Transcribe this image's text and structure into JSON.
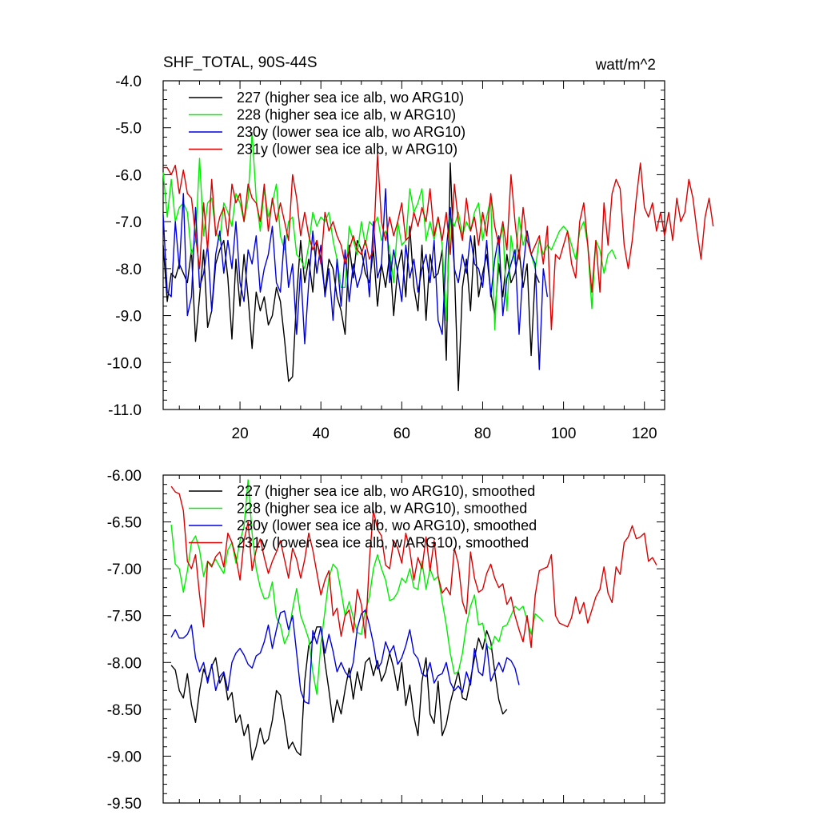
{
  "chart_data": [
    {
      "type": "line",
      "title": "SHF_TOTAL, 90S-44S",
      "units": "watt/m^2",
      "xlabel": "",
      "ylabel": "",
      "xlim": [
        1,
        125
      ],
      "ylim": [
        -11.0,
        -4.0
      ],
      "xticks": [
        20,
        40,
        60,
        80,
        100,
        120
      ],
      "xtick_labels": [
        "20",
        "40",
        "60",
        "80",
        "100",
        "120"
      ],
      "yticks": [
        -11.0,
        -10.0,
        -9.0,
        -8.0,
        -7.0,
        -6.0,
        -5.0,
        -4.0
      ],
      "ytick_labels": [
        "-11.0",
        "-10.0",
        "-9.0",
        "-8.0",
        "-7.0",
        "-6.0",
        "-5.0",
        "-4.0"
      ],
      "legend_position": "top-left",
      "grid": false,
      "series": [
        {
          "name": "227 (higher sea ice alb, wo ARG10)",
          "color": "#000000",
          "x_start": 1,
          "values": [
            -7.5,
            -8.7,
            -8.1,
            -8.2,
            -7.9,
            -8.1,
            -8.3,
            -7.6,
            -9.55,
            -8.6,
            -7.6,
            -9.25,
            -8.9,
            -7.9,
            -7.6,
            -7.4,
            -8.2,
            -9.5,
            -7.8,
            -8.8,
            -7.7,
            -8.6,
            -9.7,
            -8.5,
            -8.9,
            -8.6,
            -9.2,
            -9.0,
            -8.4,
            -8.7,
            -9.5,
            -10.4,
            -10.3,
            -8.6,
            -7.4,
            -8.3,
            -7.8,
            -8.5,
            -7.4,
            -7.8,
            -8.5,
            -7.8,
            -8.0,
            -8.6,
            -8.9,
            -9.4,
            -7.5,
            -8.2,
            -7.4,
            -7.6,
            -8.1,
            -8.3,
            -7.6,
            -8.8,
            -7.9,
            -8.4,
            -7.7,
            -9.0,
            -8.0,
            -7.6,
            -8.6,
            -7.1,
            -8.4,
            -8.9,
            -7.5,
            -9.1,
            -7.7,
            -8.2,
            -8.1,
            -7.6,
            -9.95,
            -5.75,
            -8.0,
            -10.6,
            -8.4,
            -7.8,
            -8.9,
            -7.3,
            -8.6,
            -8.1,
            -7.7,
            -8.5,
            -9.0,
            -7.9,
            -8.6,
            -7.7,
            -8.3,
            -8.1,
            -7.6,
            -8.4,
            -7.9,
            -9.85,
            -8.1,
            -8.3
          ]
        },
        {
          "name": "228 (higher sea ice alb, w ARG10)",
          "color": "#00ee00",
          "x_start": 1,
          "values": [
            -5.95,
            -6.9,
            -6.1,
            -7.0,
            -6.7,
            -6.6,
            -6.8,
            -7.7,
            -7.4,
            -5.65,
            -7.3,
            -6.6,
            -6.5,
            -7.2,
            -7.4,
            -6.6,
            -6.8,
            -7.1,
            -6.4,
            -6.6,
            -7.0,
            -6.5,
            -5.1,
            -6.5,
            -7.2,
            -6.3,
            -6.9,
            -6.6,
            -6.2,
            -7.3,
            -7.6,
            -7.0,
            -6.9,
            -7.7,
            -7.8,
            -8.0,
            -7.5,
            -6.8,
            -7.1,
            -6.9,
            -7.0,
            -6.8,
            -7.4,
            -7.8,
            -8.4,
            -8.4,
            -7.1,
            -7.4,
            -7.7,
            -7.0,
            -7.5,
            -7.0,
            -7.1,
            -6.9,
            -7.4,
            -7.2,
            -7.6,
            -8.3,
            -7.0,
            -7.5,
            -7.4,
            -6.3,
            -6.8,
            -6.6,
            -6.3,
            -7.4,
            -7.0,
            -7.4,
            -6.9,
            -7.5,
            -9.1,
            -6.9,
            -7.1,
            -6.8,
            -7.3,
            -7.0,
            -7.2,
            -6.8,
            -6.6,
            -7.4,
            -6.9,
            -6.5,
            -9.3,
            -7.5,
            -7.1,
            -8.9,
            -7.3,
            -7.9,
            -6.9,
            -7.5,
            -7.2,
            -7.7,
            -8.0,
            -7.4,
            -7.7,
            -7.5,
            -7.6,
            -7.4,
            -7.2,
            -7.1,
            -7.2,
            -7.5,
            -7.8,
            -7.2,
            -7.0,
            -7.5,
            -8.85,
            -7.4,
            -7.6,
            -8.1,
            -7.7,
            -7.6,
            -7.8
          ]
        },
        {
          "name": "230y (lower sea ice alb, wo ARG10)",
          "color": "#0000dd",
          "x_start": 1,
          "values": [
            -6.85,
            -8.5,
            -8.6,
            -7.0,
            -8.0,
            -6.4,
            -9.0,
            -8.6,
            -6.7,
            -8.4,
            -8.1,
            -7.5,
            -8.9,
            -7.7,
            -7.2,
            -8.1,
            -7.4,
            -8.0,
            -7.0,
            -8.3,
            -8.7,
            -7.6,
            -7.9,
            -7.3,
            -8.5,
            -8.0,
            -7.7,
            -7.1,
            -8.3,
            -8.5,
            -7.3,
            -8.4,
            -7.9,
            -9.4,
            -8.0,
            -9.6,
            -8.3,
            -7.2,
            -8.1,
            -7.5,
            -8.6,
            -8.0,
            -9.1,
            -7.8,
            -8.8,
            -7.6,
            -8.7,
            -7.9,
            -8.4,
            -8.1,
            -7.6,
            -8.6,
            -7.0,
            -8.2,
            -7.9,
            -6.3,
            -8.3,
            -7.6,
            -8.1,
            -8.7,
            -7.5,
            -8.2,
            -7.8,
            -8.5,
            -8.0,
            -7.7,
            -8.3,
            -7.4,
            -9.1,
            -9.4,
            -7.6,
            -6.7,
            -8.0,
            -8.3,
            -7.7,
            -8.1,
            -7.3,
            -7.9,
            -8.0,
            -8.4,
            -7.4,
            -8.6,
            -7.8,
            -7.3,
            -9.0,
            -8.2,
            -7.9,
            -7.6,
            -9.4,
            -8.0,
            -7.2,
            -7.7,
            -7.9,
            -10.15,
            -8.0,
            -8.6
          ]
        },
        {
          "name": "231y (lower sea ice alb, w ARG10)",
          "color": "#dd0000",
          "x_start": 1,
          "values": [
            -5.85,
            -5.85,
            -6.0,
            -5.8,
            -6.4,
            -5.9,
            -6.4,
            -6.5,
            -7.3,
            -8.0,
            -6.6,
            -7.6,
            -6.1,
            -7.3,
            -6.9,
            -6.7,
            -7.3,
            -6.2,
            -6.6,
            -6.4,
            -7.0,
            -6.2,
            -6.5,
            -6.6,
            -7.0,
            -6.2,
            -7.2,
            -6.5,
            -7.0,
            -6.6,
            -7.0,
            -7.4,
            -6.0,
            -6.5,
            -7.3,
            -6.8,
            -7.3,
            -7.6,
            -7.4,
            -7.9,
            -6.8,
            -7.2,
            -7.0,
            -7.3,
            -7.5,
            -7.9,
            -7.6,
            -7.3,
            -7.6,
            -7.7,
            -7.4,
            -7.8,
            -7.6,
            -5.55,
            -7.0,
            -7.4,
            -6.9,
            -7.3,
            -7.0,
            -6.6,
            -7.4,
            -7.3,
            -6.8,
            -7.1,
            -6.7,
            -7.0,
            -6.3,
            -7.3,
            -6.9,
            -7.4,
            -6.8,
            -7.7,
            -6.2,
            -7.0,
            -7.4,
            -6.5,
            -7.2,
            -6.9,
            -7.5,
            -6.8,
            -7.3,
            -6.4,
            -7.1,
            -7.5,
            -7.0,
            -7.6,
            -6.0,
            -7.0,
            -7.8,
            -6.7,
            -7.4,
            -7.7,
            -7.5,
            -7.3,
            -7.9,
            -7.1,
            -9.3,
            -7.7,
            -7.8,
            -7.5,
            -7.2,
            -7.9,
            -8.2,
            -7.0,
            -6.6,
            -7.5,
            -8.5,
            -7.4,
            -8.5,
            -6.6,
            -7.5,
            -6.4,
            -6.1,
            -6.3,
            -7.5,
            -8.0,
            -7.4,
            -6.5,
            -5.75,
            -6.7,
            -6.9,
            -6.6,
            -7.2,
            -6.8,
            -7.3,
            -6.8,
            -7.4,
            -6.5,
            -7.0,
            -6.8,
            -6.1,
            -6.5,
            -7.2,
            -7.8,
            -6.9,
            -6.5,
            -7.1
          ]
        }
      ]
    },
    {
      "type": "line",
      "title": "",
      "xlabel": "",
      "ylabel": "",
      "xlim": [
        1,
        125
      ],
      "ylim": [
        -9.5,
        -6.0
      ],
      "xticks": [
        20,
        40,
        60,
        80,
        100,
        120
      ],
      "xtick_labels": [],
      "yticks": [
        -9.5,
        -9.0,
        -8.5,
        -8.0,
        -7.5,
        -7.0,
        -6.5,
        -6.0
      ],
      "ytick_labels": [
        "-9.50",
        "-9.00",
        "-8.50",
        "-8.00",
        "-7.50",
        "-7.00",
        "-6.50",
        "-6.00"
      ],
      "legend_position": "top-left",
      "grid": false,
      "series": [
        {
          "name": "227 (higher sea ice alb, wo ARG10), smoothed",
          "color": "#000000",
          "x_start": 3,
          "values": [
            -8.03,
            -8.08,
            -8.3,
            -8.38,
            -8.12,
            -8.45,
            -8.64,
            -8.3,
            -8.07,
            -8.18,
            -8.04,
            -7.95,
            -8.22,
            -8.12,
            -8.4,
            -8.32,
            -8.64,
            -8.56,
            -8.78,
            -8.66,
            -9.04,
            -8.9,
            -8.7,
            -8.87,
            -8.82,
            -8.62,
            -8.3,
            -8.35,
            -8.62,
            -8.92,
            -8.85,
            -8.95,
            -8.99,
            -8.2,
            -7.82,
            -7.76,
            -7.62,
            -7.62,
            -8.0,
            -8.3,
            -8.64,
            -8.4,
            -8.55,
            -8.29,
            -8.06,
            -8.39,
            -8.1,
            -8.3,
            -8.0,
            -7.95,
            -8.14,
            -7.98,
            -8.2,
            -8.1,
            -7.9,
            -8.06,
            -8.3,
            -8.0,
            -8.46,
            -8.24,
            -8.58,
            -8.78,
            -8.2,
            -7.95,
            -8.55,
            -8.65,
            -8.2,
            -8.78,
            -8.66,
            -8.43,
            -8.26,
            -8.09,
            -8.38,
            -8.4,
            -8.18,
            -7.95,
            -7.74,
            -7.86,
            -7.66,
            -7.78,
            -8.1,
            -8.4,
            -8.55,
            -8.5
          ]
        },
        {
          "name": "228 (higher sea ice alb, w ARG10), smoothed",
          "color": "#00ee00",
          "x_start": 3,
          "values": [
            -6.53,
            -6.95,
            -7.0,
            -7.25,
            -7.02,
            -6.72,
            -6.65,
            -6.8,
            -7.08,
            -6.92,
            -6.96,
            -6.9,
            -6.98,
            -7.05,
            -6.8,
            -6.72,
            -6.94,
            -6.7,
            -6.55,
            -6.05,
            -6.62,
            -7.0,
            -7.2,
            -7.32,
            -7.31,
            -7.14,
            -7.52,
            -7.6,
            -7.8,
            -7.7,
            -7.43,
            -7.21,
            -7.5,
            -7.62,
            -7.75,
            -8.1,
            -8.34,
            -7.8,
            -7.45,
            -7.1,
            -6.95,
            -7.0,
            -7.24,
            -7.5,
            -7.35,
            -7.52,
            -7.68,
            -7.7,
            -7.45,
            -7.3,
            -7.0,
            -6.85,
            -7.0,
            -7.12,
            -7.34,
            -7.32,
            -7.25,
            -7.1,
            -7.15,
            -7.0,
            -7.2,
            -7.22,
            -6.92,
            -7.22,
            -7.0,
            -7.12,
            -7.08,
            -7.35,
            -7.6,
            -7.9,
            -8.12,
            -8.1,
            -7.9,
            -7.6,
            -7.4,
            -7.28,
            -7.6,
            -7.58,
            -7.82,
            -7.86,
            -7.72,
            -7.78,
            -7.62,
            -7.6,
            -7.5,
            -7.4,
            -7.44,
            -7.4,
            -7.55,
            -7.7,
            -7.48,
            -7.52,
            -7.56
          ]
        },
        {
          "name": "230y (lower sea ice alb, wo ARG10), smoothed",
          "color": "#0000dd",
          "x_start": 3,
          "values": [
            -7.73,
            -7.65,
            -7.74,
            -7.74,
            -7.7,
            -7.6,
            -7.95,
            -8.1,
            -8.0,
            -8.22,
            -8.02,
            -8.3,
            -8.15,
            -8.1,
            -8.3,
            -8.0,
            -7.9,
            -7.85,
            -7.92,
            -8.02,
            -8.06,
            -7.93,
            -7.9,
            -7.78,
            -7.6,
            -7.85,
            -7.65,
            -7.47,
            -7.45,
            -7.65,
            -7.5,
            -7.9,
            -8.3,
            -8.42,
            -8.44,
            -7.66,
            -7.8,
            -7.62,
            -7.9,
            -7.7,
            -7.88,
            -8.1,
            -8.0,
            -8.1,
            -8.16,
            -8.0,
            -7.64,
            -7.48,
            -7.44,
            -7.6,
            -7.8,
            -8.07,
            -8.0,
            -7.78,
            -7.9,
            -7.82,
            -8.02,
            -7.95,
            -7.82,
            -7.65,
            -7.9,
            -7.96,
            -8.12,
            -8.15,
            -8.0,
            -8.22,
            -8.14,
            -8.12,
            -8.0,
            -8.21,
            -8.3,
            -8.25,
            -8.32,
            -8.1,
            -8.24,
            -7.85,
            -8.1,
            -8.14,
            -7.8,
            -8.2,
            -8.1,
            -8.0,
            -8.1,
            -7.95,
            -7.98,
            -8.06,
            -8.24
          ]
        },
        {
          "name": "231y (lower sea ice alb, w ARG10), smoothed",
          "color": "#dd0000",
          "x_start": 3,
          "values": [
            -6.12,
            -6.18,
            -6.2,
            -6.38,
            -6.92,
            -7.0,
            -6.85,
            -7.28,
            -7.62,
            -6.92,
            -6.98,
            -6.87,
            -6.82,
            -6.98,
            -6.62,
            -6.72,
            -6.88,
            -7.12,
            -6.7,
            -6.5,
            -7.02,
            -6.8,
            -6.68,
            -6.88,
            -7.05,
            -6.92,
            -6.82,
            -6.7,
            -6.9,
            -7.1,
            -6.78,
            -6.9,
            -7.1,
            -6.9,
            -6.62,
            -6.8,
            -7.04,
            -7.28,
            -7.12,
            -7.02,
            -7.5,
            -7.42,
            -7.72,
            -7.5,
            -7.44,
            -7.68,
            -7.22,
            -7.38,
            -7.74,
            -6.9,
            -6.38,
            -6.58,
            -6.65,
            -6.96,
            -7.0,
            -6.7,
            -6.78,
            -6.94,
            -6.62,
            -6.8,
            -7.12,
            -6.88,
            -7.0,
            -6.66,
            -7.02,
            -6.7,
            -7.08,
            -7.26,
            -7.2,
            -7.28,
            -6.78,
            -6.95,
            -7.35,
            -7.48,
            -6.82,
            -7.1,
            -7.25,
            -7.22,
            -7.05,
            -6.95,
            -7.1,
            -7.2,
            -7.16,
            -7.38,
            -7.3,
            -7.5,
            -7.65,
            -7.78,
            -7.5,
            -7.84,
            -7.28,
            -7.02,
            -7.0,
            -6.98,
            -6.85,
            -7.5,
            -7.58,
            -7.6,
            -7.62,
            -7.52,
            -7.3,
            -7.48,
            -7.36,
            -7.58,
            -7.44,
            -7.3,
            -7.22,
            -6.98,
            -7.26,
            -7.36,
            -6.98,
            -7.06,
            -6.72,
            -6.66,
            -6.54,
            -6.68,
            -6.66,
            -6.62,
            -6.92,
            -6.88,
            -6.96
          ]
        }
      ]
    }
  ]
}
